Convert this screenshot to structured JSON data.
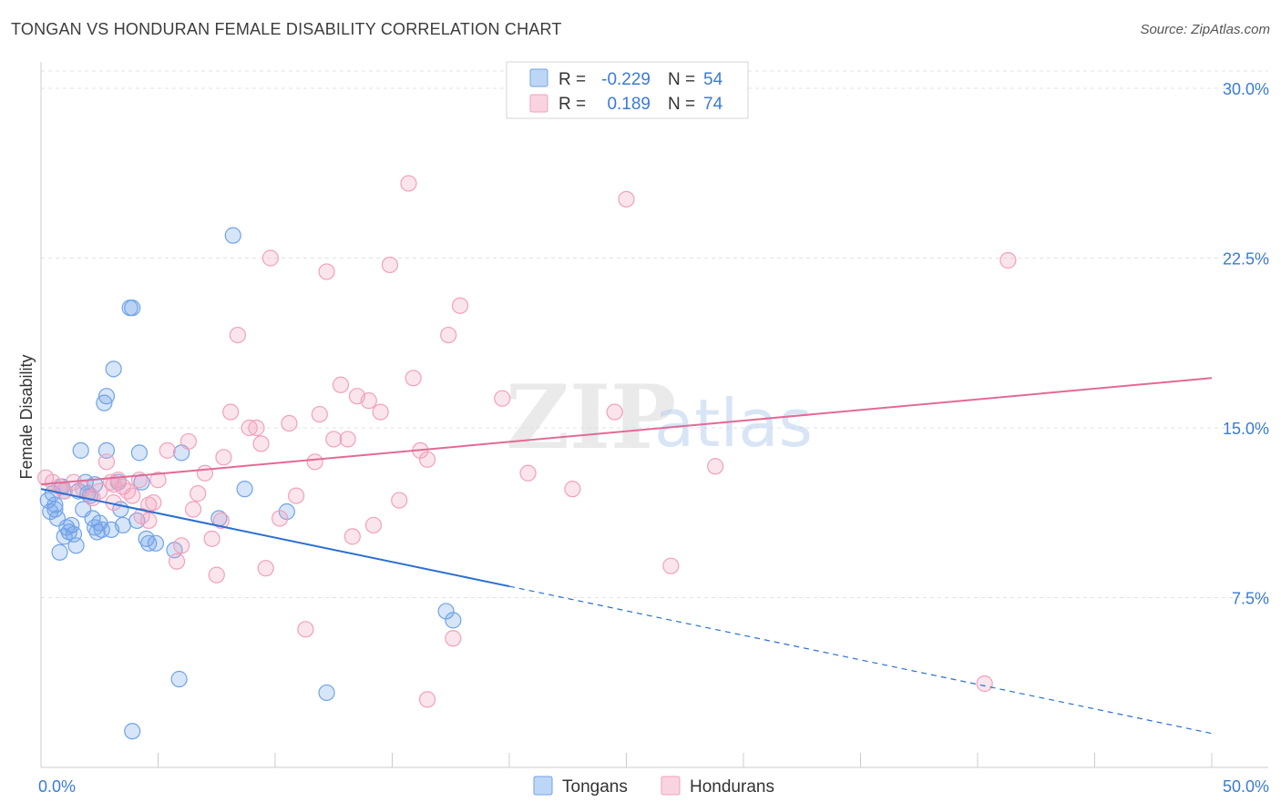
{
  "header": {
    "title": "TONGAN VS HONDURAN FEMALE DISABILITY CORRELATION CHART",
    "source": "Source: ZipAtlas.com"
  },
  "watermark": {
    "zip": "ZIP",
    "atlas": "atlas"
  },
  "legend_top": {
    "rows": [
      {
        "r_label": "R =",
        "r_value": "-0.229",
        "n_label": "N =",
        "n_value": "54",
        "color": "#6fa3e8"
      },
      {
        "r_label": "R =",
        "r_value": "0.189",
        "n_label": "N =",
        "n_value": "74",
        "color": "#f2a0bb"
      }
    ]
  },
  "legend_bottom": {
    "items": [
      {
        "label": "Tongans",
        "color": "#6fa3e8"
      },
      {
        "label": "Hondurans",
        "color": "#f2a0bb"
      }
    ]
  },
  "chart_data": {
    "type": "scatter",
    "title": "TONGAN VS HONDURAN FEMALE DISABILITY CORRELATION CHART",
    "xlabel": "",
    "ylabel": "Female Disability",
    "xlim": [
      0,
      50
    ],
    "ylim": [
      0,
      31.5
    ],
    "x_tick_labels": [
      {
        "value": 0,
        "label": "0.0%"
      },
      {
        "value": 50,
        "label": "50.0%"
      }
    ],
    "y_tick_labels": [
      {
        "value": 7.5,
        "label": "7.5%"
      },
      {
        "value": 15,
        "label": "15.0%"
      },
      {
        "value": 22.5,
        "label": "22.5%"
      },
      {
        "value": 30,
        "label": "30.0%"
      }
    ],
    "grid": true,
    "series": [
      {
        "name": "Tongans",
        "color": "#6fa3e8",
        "line_color": "#2a6fd0",
        "trend": {
          "x0": 0,
          "y0": 12.3,
          "x1": 20,
          "y1": 8.0,
          "dashed_to_x": 50,
          "dashed_to_y": 1.5
        },
        "points": [
          [
            0.3,
            11.8
          ],
          [
            0.4,
            11.3
          ],
          [
            0.5,
            12.1
          ],
          [
            0.6,
            11.6
          ],
          [
            0.7,
            11.0
          ],
          [
            0.8,
            9.5
          ],
          [
            0.9,
            12.4
          ],
          [
            1.0,
            10.2
          ],
          [
            1.1,
            10.6
          ],
          [
            1.2,
            10.4
          ],
          [
            1.3,
            10.7
          ],
          [
            1.4,
            10.3
          ],
          [
            1.5,
            9.8
          ],
          [
            1.6,
            12.2
          ],
          [
            1.7,
            14.0
          ],
          [
            1.8,
            11.4
          ],
          [
            1.9,
            12.6
          ],
          [
            2.0,
            12.1
          ],
          [
            2.1,
            12.0
          ],
          [
            2.2,
            11.0
          ],
          [
            2.3,
            10.6
          ],
          [
            2.4,
            10.4
          ],
          [
            2.5,
            10.8
          ],
          [
            2.6,
            10.5
          ],
          [
            2.7,
            16.1
          ],
          [
            2.8,
            16.4
          ],
          [
            2.8,
            14.0
          ],
          [
            3.0,
            10.5
          ],
          [
            3.1,
            17.6
          ],
          [
            3.3,
            12.6
          ],
          [
            3.4,
            11.4
          ],
          [
            3.5,
            10.7
          ],
          [
            3.8,
            20.3
          ],
          [
            3.9,
            20.3
          ],
          [
            4.1,
            10.9
          ],
          [
            4.2,
            13.9
          ],
          [
            4.3,
            12.6
          ],
          [
            4.5,
            10.1
          ],
          [
            4.6,
            9.9
          ],
          [
            4.9,
            9.9
          ],
          [
            5.7,
            9.6
          ],
          [
            5.9,
            3.9
          ],
          [
            6.0,
            13.9
          ],
          [
            7.6,
            11.0
          ],
          [
            8.2,
            23.5
          ],
          [
            8.7,
            12.3
          ],
          [
            10.5,
            11.3
          ],
          [
            12.2,
            3.3
          ],
          [
            17.3,
            6.9
          ],
          [
            17.6,
            6.5
          ],
          [
            3.9,
            1.6
          ],
          [
            0.6,
            11.4
          ],
          [
            1.0,
            12.2
          ],
          [
            2.3,
            12.5
          ]
        ]
      },
      {
        "name": "Hondurans",
        "color": "#f2a0bb",
        "line_color": "#e06b96",
        "trend": {
          "x0": 0,
          "y0": 12.5,
          "x1": 50,
          "y1": 17.2
        },
        "points": [
          [
            0.2,
            12.8
          ],
          [
            0.5,
            12.6
          ],
          [
            0.8,
            12.4
          ],
          [
            1.0,
            12.2
          ],
          [
            1.4,
            12.6
          ],
          [
            1.8,
            12.3
          ],
          [
            2.2,
            11.9
          ],
          [
            2.5,
            12.2
          ],
          [
            2.8,
            13.5
          ],
          [
            3.0,
            12.6
          ],
          [
            3.1,
            11.7
          ],
          [
            3.3,
            12.7
          ],
          [
            3.5,
            12.4
          ],
          [
            3.7,
            12.2
          ],
          [
            3.9,
            12.0
          ],
          [
            4.2,
            12.7
          ],
          [
            4.3,
            11.1
          ],
          [
            4.6,
            11.6
          ],
          [
            4.8,
            11.7
          ],
          [
            5.0,
            12.7
          ],
          [
            5.4,
            14.0
          ],
          [
            5.8,
            9.1
          ],
          [
            6.0,
            9.8
          ],
          [
            6.3,
            14.4
          ],
          [
            6.5,
            11.4
          ],
          [
            6.7,
            12.1
          ],
          [
            7.0,
            13.0
          ],
          [
            7.3,
            10.1
          ],
          [
            7.5,
            8.5
          ],
          [
            7.7,
            10.9
          ],
          [
            7.8,
            13.7
          ],
          [
            8.1,
            15.7
          ],
          [
            8.4,
            19.1
          ],
          [
            8.9,
            15.0
          ],
          [
            9.2,
            15.0
          ],
          [
            9.4,
            14.3
          ],
          [
            9.6,
            8.8
          ],
          [
            9.8,
            22.5
          ],
          [
            10.2,
            11.0
          ],
          [
            10.6,
            15.2
          ],
          [
            10.9,
            12.0
          ],
          [
            11.3,
            6.1
          ],
          [
            11.7,
            13.5
          ],
          [
            11.9,
            15.6
          ],
          [
            12.2,
            21.9
          ],
          [
            12.5,
            14.5
          ],
          [
            12.8,
            16.9
          ],
          [
            13.1,
            14.5
          ],
          [
            13.3,
            10.2
          ],
          [
            13.5,
            16.4
          ],
          [
            14.0,
            16.2
          ],
          [
            14.2,
            10.7
          ],
          [
            14.5,
            15.7
          ],
          [
            14.9,
            22.2
          ],
          [
            15.3,
            11.8
          ],
          [
            15.7,
            25.8
          ],
          [
            15.9,
            17.2
          ],
          [
            16.2,
            14.0
          ],
          [
            16.5,
            13.6
          ],
          [
            16.5,
            3.0
          ],
          [
            17.4,
            19.1
          ],
          [
            17.6,
            5.7
          ],
          [
            17.9,
            20.4
          ],
          [
            19.7,
            16.3
          ],
          [
            20.8,
            13.0
          ],
          [
            22.7,
            12.3
          ],
          [
            24.5,
            15.7
          ],
          [
            25.0,
            25.1
          ],
          [
            26.9,
            8.9
          ],
          [
            28.8,
            13.3
          ],
          [
            40.3,
            3.7
          ],
          [
            41.3,
            22.4
          ],
          [
            3.1,
            12.5
          ],
          [
            4.6,
            10.9
          ]
        ]
      }
    ]
  }
}
